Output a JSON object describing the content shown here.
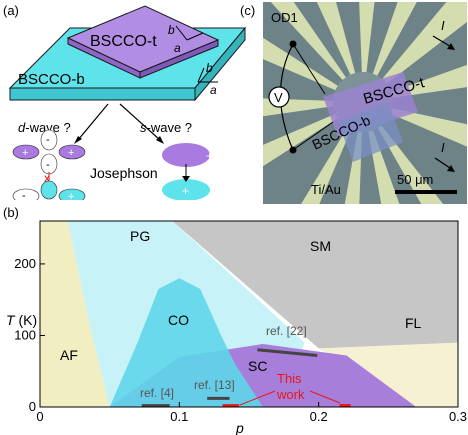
{
  "panel_a": {
    "label": "(a)",
    "top_crystal": "BSCCO-t",
    "bottom_crystal": "BSCCO-b",
    "axis_b_top": "b",
    "axis_a_top": "a",
    "axis_b_bottom": "b",
    "axis_a_bottom": "a",
    "dwave_question": "d-wave ?",
    "swave_question": "s-wave ?",
    "josephson": "Josephson",
    "plus": "+",
    "minus": "-",
    "cross": "x"
  },
  "panel_c": {
    "label": "(c)",
    "od_label": "OD1",
    "top_crystal": "BSCCO-t",
    "bottom_crystal": "BSCCO-b",
    "voltmeter": "V",
    "current_top": "I",
    "current_bottom": "I",
    "electrodes": "Ti/Au",
    "scale_bar": "50 μm",
    "colors": {
      "background": "#6d8388",
      "electrode": "#d4ddb0",
      "crystal": "#9a82d0"
    }
  },
  "panel_b": {
    "label": "(b)",
    "xlabel": "p",
    "ylabel": "T (K)",
    "x_ticks": [
      "0",
      "0.1",
      "0.2",
      "0.3"
    ],
    "y_ticks": [
      "0",
      "100",
      "200"
    ],
    "regions": {
      "pg": "PG",
      "sm": "SM",
      "co": "CO",
      "af": "AF",
      "fl": "FL",
      "sc": "SC"
    },
    "references": {
      "ref4": "ref. [4]",
      "ref13": "ref. [13]",
      "ref22": "ref. [22]"
    },
    "this_work": [
      "This",
      "work"
    ],
    "colors": {
      "sc": "#a77ed9",
      "co": "#5fd6ea",
      "pg": "#c6f2f8",
      "sm": "#c6c6c6",
      "af": "#f1efc2",
      "fl": "#f6f1d2",
      "this_work": "#e81818"
    }
  },
  "chart_data": {
    "type": "area",
    "xlabel": "p",
    "ylabel": "T (K)",
    "xlim": [
      0,
      0.3
    ],
    "ylim": [
      0,
      260
    ],
    "x_ticks": [
      0,
      0.1,
      0.2,
      0.3
    ],
    "y_ticks": [
      0,
      100,
      200
    ],
    "grid": false,
    "regions": [
      {
        "name": "AF",
        "points": [
          [
            0,
            0
          ],
          [
            0,
            260
          ],
          [
            0.02,
            260
          ],
          [
            0.035,
            120
          ],
          [
            0.05,
            0
          ]
        ]
      },
      {
        "name": "SC",
        "points": [
          [
            0.05,
            0
          ],
          [
            0.1,
            70
          ],
          [
            0.16,
            88
          ],
          [
            0.22,
            72
          ],
          [
            0.27,
            0
          ]
        ]
      },
      {
        "name": "CO",
        "points": [
          [
            0.05,
            0
          ],
          [
            0.07,
            90
          ],
          [
            0.085,
            165
          ],
          [
            0.1,
            180
          ],
          [
            0.115,
            165
          ],
          [
            0.13,
            100
          ],
          [
            0.14,
            60
          ],
          [
            0.16,
            0
          ]
        ]
      },
      {
        "name": "PG",
        "points": [
          [
            0.02,
            260
          ],
          [
            0.095,
            260
          ],
          [
            0.19,
            90
          ],
          [
            0.17,
            0
          ],
          [
            0.05,
            0
          ],
          [
            0.035,
            120
          ]
        ]
      },
      {
        "name": "SM",
        "points": [
          [
            0.095,
            260
          ],
          [
            0.3,
            260
          ],
          [
            0.3,
            90
          ],
          [
            0.2,
            82
          ]
        ]
      },
      {
        "name": "FL",
        "points": [
          [
            0.2,
            82
          ],
          [
            0.3,
            90
          ],
          [
            0.3,
            0
          ],
          [
            0.27,
            0
          ]
        ]
      }
    ],
    "reference_segments": [
      {
        "name": "ref. [4]",
        "x": [
          0.073,
          0.093
        ],
        "y": [
          2,
          2
        ]
      },
      {
        "name": "ref. [13]",
        "x": [
          0.12,
          0.136
        ],
        "y": [
          12,
          12
        ]
      },
      {
        "name": "ref. [22]",
        "x": [
          0.156,
          0.199
        ],
        "y": [
          80,
          72
        ]
      },
      {
        "name": "This work",
        "x": [
          0.131,
          0.143
        ],
        "y": [
          2,
          2
        ]
      },
      {
        "name": "This work",
        "x": [
          0.215,
          0.223
        ],
        "y": [
          2,
          2
        ]
      }
    ]
  }
}
